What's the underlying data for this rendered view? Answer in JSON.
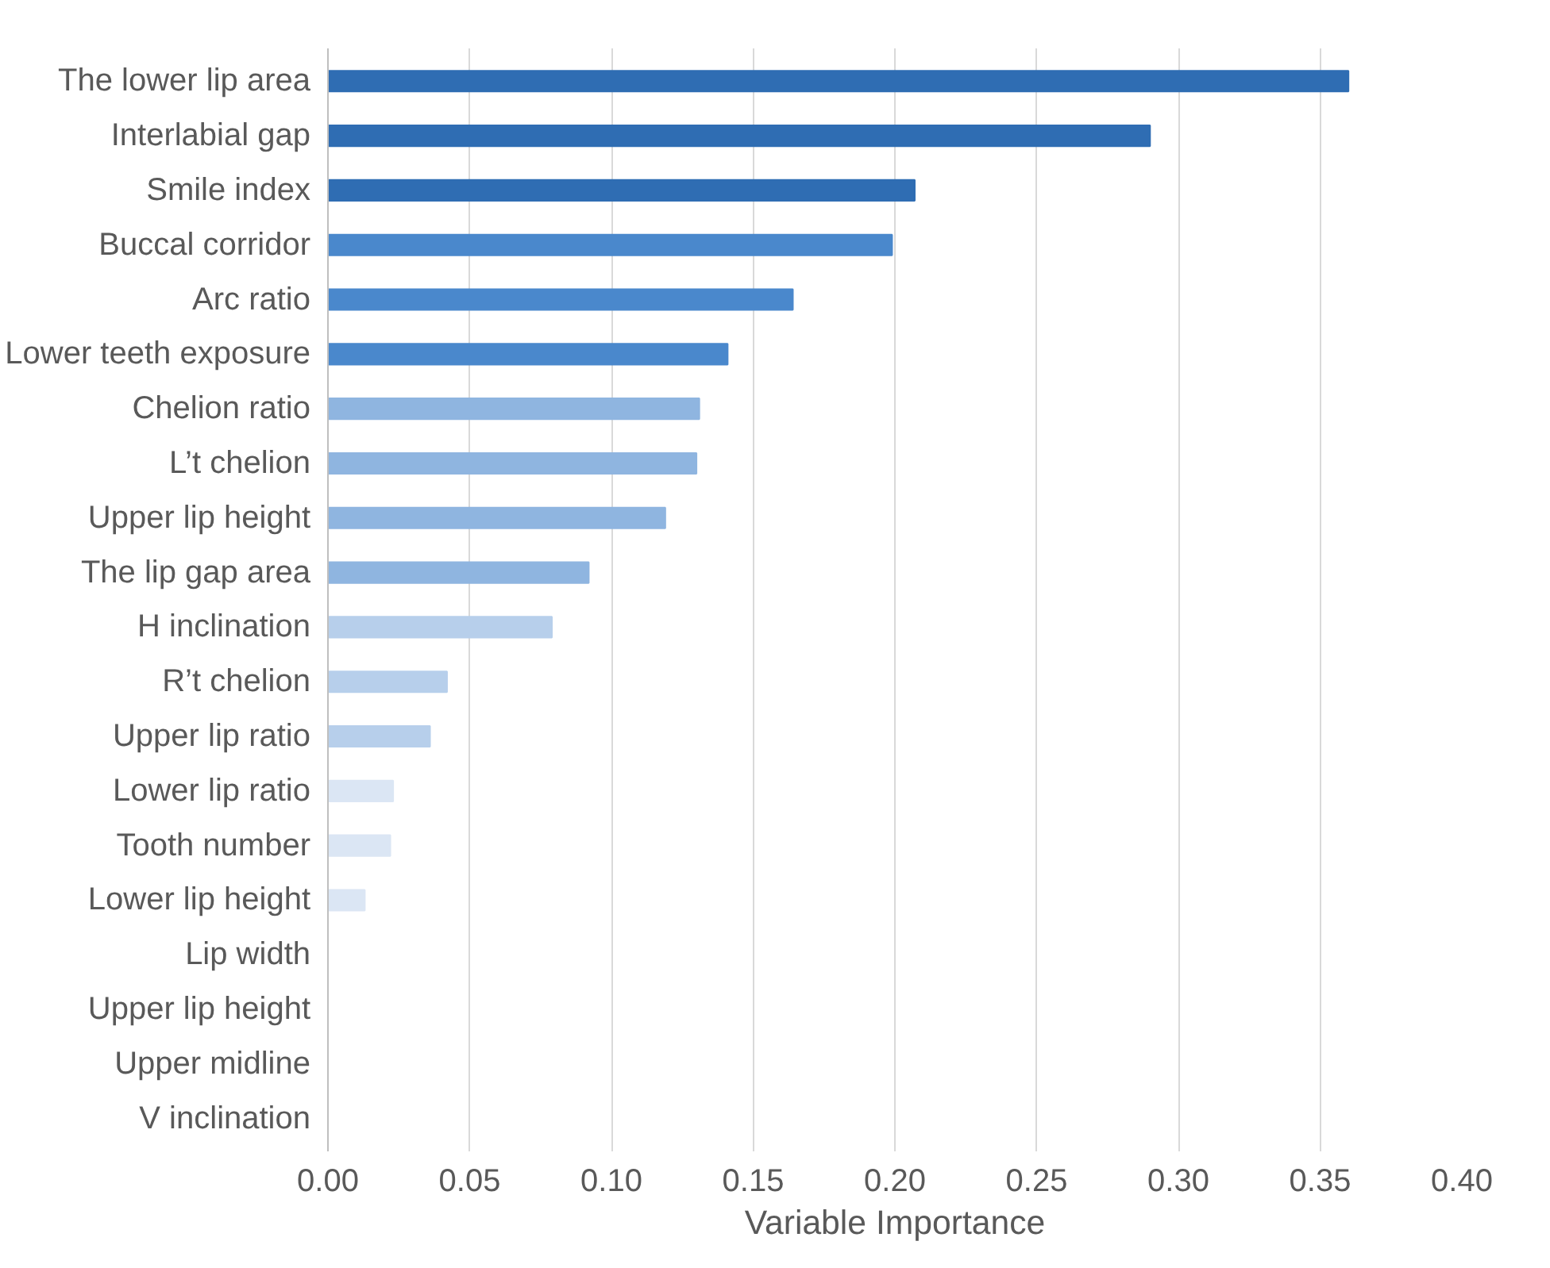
{
  "chart_data": {
    "type": "bar",
    "orientation": "horizontal",
    "xlabel": "Variable Importance",
    "categories": [
      "The lower lip area",
      "Interlabial gap",
      "Smile index",
      "Buccal corridor",
      "Arc ratio",
      "Lower teeth exposure",
      "Chelion ratio",
      "L’t chelion",
      "Upper lip height",
      "The lip gap area",
      "H inclination",
      "R’t chelion",
      "Upper lip ratio",
      "Lower lip ratio",
      "Tooth number",
      "Lower lip height",
      "Lip width",
      "Upper lip height",
      "Upper midline",
      "V inclination"
    ],
    "values": [
      0.36,
      0.29,
      0.207,
      0.199,
      0.164,
      0.141,
      0.131,
      0.13,
      0.119,
      0.092,
      0.079,
      0.042,
      0.036,
      0.023,
      0.022,
      0.013,
      0,
      0,
      0,
      0
    ],
    "colors": [
      "#2f6db3",
      "#2f6db3",
      "#2f6db3",
      "#4a88cc",
      "#4a88cc",
      "#4a88cc",
      "#8fb5e0",
      "#8fb5e0",
      "#8fb5e0",
      "#8fb5e0",
      "#b7cfeb",
      "#b7cfeb",
      "#b7cfeb",
      "#dbe6f4",
      "#dbe6f4",
      "#dbe6f4",
      "#dbe6f4",
      "#dbe6f4",
      "#dbe6f4",
      "#dbe6f4"
    ],
    "xlim": [
      0,
      0.4
    ],
    "xticks": [
      {
        "value": 0,
        "label": "0.00"
      },
      {
        "value": 0.05,
        "label": "0.05"
      },
      {
        "value": 0.1,
        "label": "0.10"
      },
      {
        "value": 0.15,
        "label": "0.15"
      },
      {
        "value": 0.2,
        "label": "0.20"
      },
      {
        "value": 0.25,
        "label": "0.25"
      },
      {
        "value": 0.3,
        "label": "0.30"
      },
      {
        "value": 0.35,
        "label": "0.35"
      },
      {
        "value": 0.4,
        "label": "0.40"
      }
    ],
    "grid": "x"
  }
}
